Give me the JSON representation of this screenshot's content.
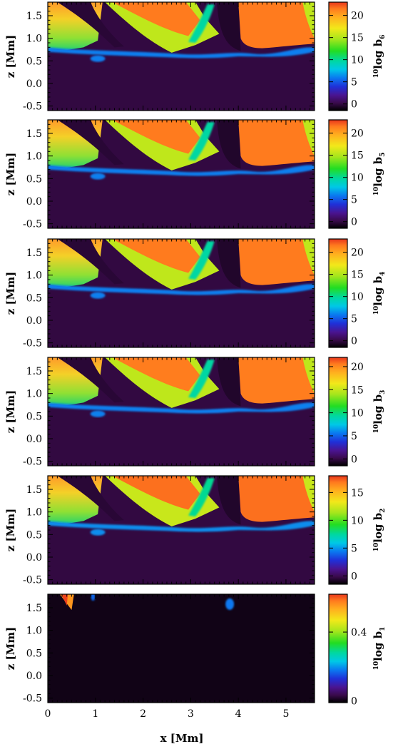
{
  "chart_data": {
    "type": "heatmap",
    "xlabel": "x [Mm]",
    "ylabel": "z [Mm]",
    "xlim": [
      0,
      5.6
    ],
    "ylim": [
      -0.6,
      1.8
    ],
    "x_ticks": [
      "0",
      "1",
      "2",
      "3",
      "4",
      "5"
    ],
    "y_ticks": [
      "-0.5",
      "0.0",
      "0.5",
      "1.0",
      "1.5"
    ],
    "colormap": "rainbow",
    "panels": [
      {
        "colorbar_label": {
          "prefix": "10",
          "main": "log b",
          "sub": "6"
        },
        "colorbar_range": [
          -1.5,
          23
        ],
        "colorbar_ticks": [
          "0",
          "5",
          "10",
          "15",
          "20"
        ],
        "hot_value": 21.5
      },
      {
        "colorbar_label": {
          "prefix": "10",
          "main": "log b",
          "sub": "5"
        },
        "colorbar_range": [
          -1.5,
          23
        ],
        "colorbar_ticks": [
          "0",
          "5",
          "10",
          "15",
          "20"
        ],
        "hot_value": 21.5
      },
      {
        "colorbar_label": {
          "prefix": "10",
          "main": "log b",
          "sub": "4"
        },
        "colorbar_range": [
          -1.5,
          23
        ],
        "colorbar_ticks": [
          "0",
          "5",
          "10",
          "15",
          "20"
        ],
        "hot_value": 21.5
      },
      {
        "colorbar_label": {
          "prefix": "10",
          "main": "log b",
          "sub": "3"
        },
        "colorbar_range": [
          -1.5,
          22
        ],
        "colorbar_ticks": [
          "0",
          "5",
          "10",
          "15",
          "20"
        ],
        "hot_value": 20.5
      },
      {
        "colorbar_label": {
          "prefix": "10",
          "main": "log b",
          "sub": "2"
        },
        "colorbar_range": [
          -1.5,
          18
        ],
        "colorbar_ticks": [
          "0",
          "5",
          "10",
          "15"
        ],
        "hot_value": 17
      },
      {
        "colorbar_label": {
          "prefix": "10",
          "main": "log b",
          "sub": "1"
        },
        "colorbar_range": [
          -0.01,
          0.62
        ],
        "colorbar_ticks": [
          "0",
          "0.4"
        ],
        "hot_value": 0.6
      }
    ]
  }
}
